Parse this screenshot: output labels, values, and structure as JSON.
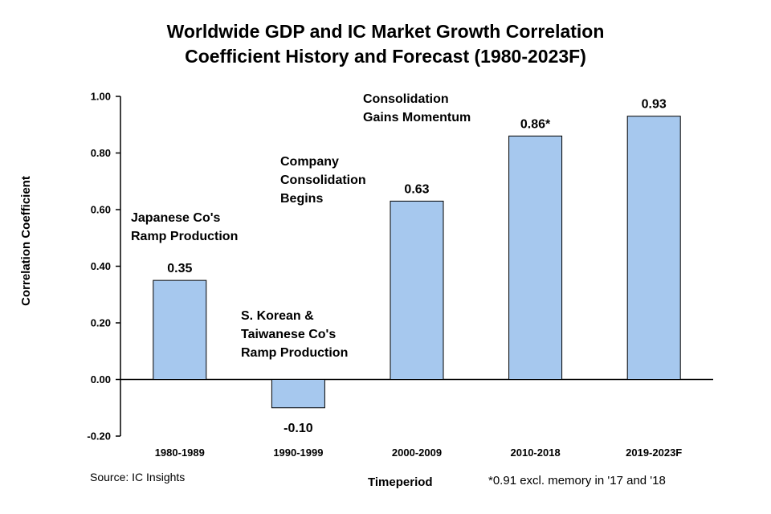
{
  "title_line1": "Worldwide GDP and IC Market Growth Correlation",
  "title_line2": "Coefficient History and Forecast (1980-2023F)",
  "ylabel": "Correlation Coefficient",
  "xlabel": "Timeperiod",
  "source": "Source: IC Insights",
  "footnote": "*0.91 excl. memory in '17 and '18",
  "annotations": {
    "japan": "Japanese Co's\nRamp Production",
    "korea": "S. Korean &\nTaiwanese Co's\nRamp Production",
    "company": "Company\nConsolidation\nBegins",
    "momentum": "Consolidation\nGains Momentum"
  },
  "chart_data": {
    "type": "bar",
    "categories": [
      "1980-1989",
      "1990-1999",
      "2000-2009",
      "2010-2018",
      "2019-2023F"
    ],
    "values": [
      0.35,
      -0.1,
      0.63,
      0.86,
      0.93
    ],
    "data_labels": [
      "0.35",
      "-0.10",
      "0.63",
      "0.86*",
      "0.93"
    ],
    "yticks": [
      "1.00",
      "0.80",
      "0.60",
      "0.40",
      "0.20",
      "0.00",
      "-0.20"
    ],
    "ytick_values": [
      1.0,
      0.8,
      0.6,
      0.4,
      0.2,
      0.0,
      -0.2
    ],
    "ylim": [
      -0.2,
      1.0
    ],
    "bar_color": "#a6c8ee",
    "bar_edge_color": "#000000",
    "grid": false,
    "legend": "none"
  }
}
